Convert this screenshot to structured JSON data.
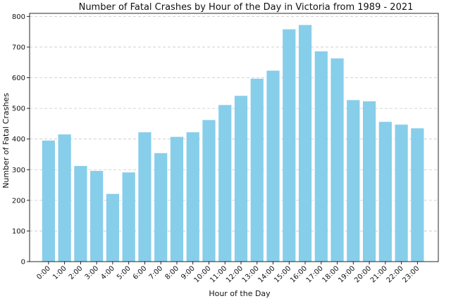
{
  "chart_data": {
    "type": "bar",
    "title": "Number of Fatal Crashes by Hour of the Day in Victoria from 1989 - 2021",
    "xlabel": "Hour of the Day",
    "ylabel": "Number of Fatal Crashes",
    "ylim": [
      0,
      810
    ],
    "yticks": [
      0,
      100,
      200,
      300,
      400,
      500,
      600,
      700,
      800
    ],
    "grid": "y",
    "bar_color": "#87CEEB",
    "categories": [
      "0:00",
      "1:00",
      "2:00",
      "3:00",
      "4:00",
      "5:00",
      "6:00",
      "7:00",
      "8:00",
      "9:00",
      "10:00",
      "11:00",
      "12:00",
      "13:00",
      "14:00",
      "15:00",
      "16:00",
      "17:00",
      "18:00",
      "19:00",
      "20:00",
      "21:00",
      "22:00",
      "23:00"
    ],
    "values": [
      395,
      415,
      312,
      296,
      221,
      291,
      422,
      354,
      407,
      422,
      462,
      511,
      541,
      597,
      623,
      758,
      772,
      686,
      663,
      527,
      523,
      456,
      447,
      435
    ]
  }
}
